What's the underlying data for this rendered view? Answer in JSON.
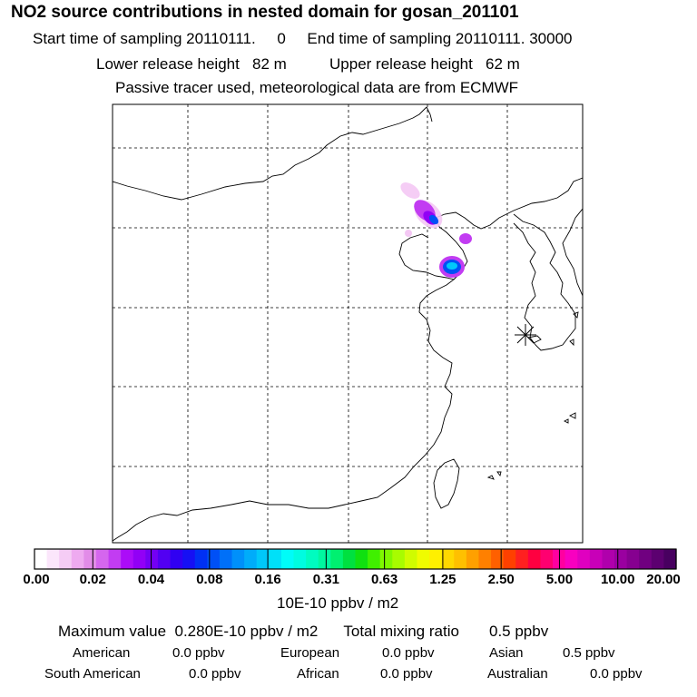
{
  "header": {
    "title": "NO2 source contributions in nested domain for gosan_201101",
    "sampling_start_label": "Start time of sampling",
    "sampling_start_value": "20110111.     0",
    "sampling_end_label": "End time of sampling",
    "sampling_end_value": "20110111. 30000",
    "lower_release_label": "Lower release height",
    "lower_release_value": "82 m",
    "upper_release_label": "Upper release height",
    "upper_release_value": "62 m",
    "note": "Passive tracer used, meteorological data are from ECMWF"
  },
  "colorbar": {
    "ticks": [
      "0.00",
      "0.02",
      "0.04",
      "0.08",
      "0.16",
      "0.31",
      "0.63",
      "1.25",
      "2.50",
      "5.00",
      "10.00",
      "20.00"
    ],
    "unit": "10E-10 ppbv / m2",
    "colors": [
      "#ffffff",
      "#fbe6fb",
      "#f5ccf5",
      "#eeaaf0",
      "#e28ce8",
      "#d566ee",
      "#c23cf2",
      "#ab0cf8",
      "#9200f6",
      "#7400f4",
      "#5200f2",
      "#3000f2",
      "#1610f4",
      "#0030f4",
      "#0050f6",
      "#0070f8",
      "#0090fa",
      "#00acfa",
      "#00c8fa",
      "#00e0f8",
      "#00fcf8",
      "#00fce0",
      "#00fcc0",
      "#00f8a0",
      "#00f070",
      "#00e040",
      "#10e010",
      "#40f000",
      "#80f800",
      "#a8fc00",
      "#d0fc00",
      "#f0fc00",
      "#fff000",
      "#ffd800",
      "#ffc000",
      "#ffa000",
      "#ff8000",
      "#ff6000",
      "#ff4000",
      "#ff2020",
      "#ff0040",
      "#ff0070",
      "#ff00a0",
      "#f800c0",
      "#e000c0",
      "#c800b8",
      "#b000ac",
      "#9a00a0",
      "#860090",
      "#700080",
      "#5c0070",
      "#480060"
    ]
  },
  "summary": {
    "max_label": "Maximum value",
    "max_value": "0.280E-10 ppbv / m2",
    "total_label": "Total mixing ratio",
    "total_value": "0.5 ppbv",
    "regions": [
      {
        "name": "American",
        "value": "0.0 ppbv"
      },
      {
        "name": "European",
        "value": "0.0 ppbv"
      },
      {
        "name": "Asian",
        "value": "0.5 ppbv"
      },
      {
        "name": "South American",
        "value": "0.0 ppbv"
      },
      {
        "name": "African",
        "value": "0.0 ppbv"
      },
      {
        "name": "Australian",
        "value": "0.0 ppbv"
      }
    ]
  },
  "map": {
    "receptor_marker": "asterisk-marker",
    "plume_colors": {
      "light": "#f4c8f4",
      "mid": "#c23cf2",
      "strong": "#9200f6",
      "core": "#0050f6",
      "peak": "#00c8fa"
    }
  }
}
